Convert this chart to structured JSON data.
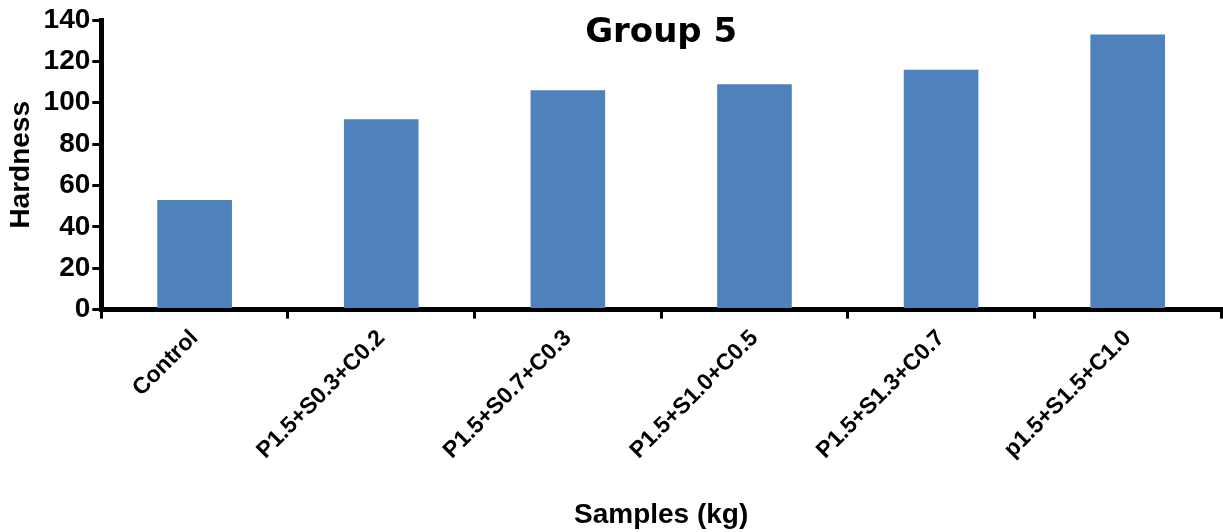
{
  "chart_data": {
    "type": "bar",
    "title": "Group 5",
    "xlabel": "Samples (kg)",
    "ylabel": "Hardness",
    "categories": [
      "Control",
      "P1.5+S0.3+C0.2",
      "P1.5+S0.7+C0.3",
      "P1.5+S1.0+C0.5",
      "P1.5+S1.3+C0.7",
      "p1.5+S1.5+C1.0"
    ],
    "values": [
      53,
      92,
      106,
      109,
      116,
      133
    ],
    "color": "#4f81bd",
    "ylim": [
      0,
      140
    ],
    "yticks": [
      0,
      20,
      40,
      60,
      80,
      100,
      120,
      140
    ],
    "grid": false,
    "legend": false
  }
}
